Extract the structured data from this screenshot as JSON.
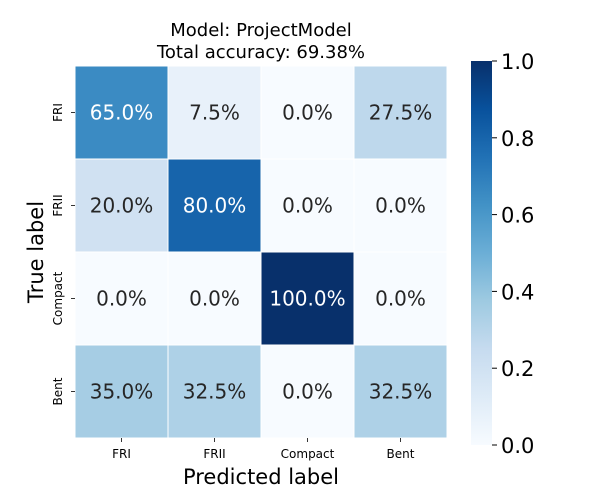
{
  "chart_data": {
    "type": "heatmap",
    "title_lines": [
      "Model: ProjectModel",
      "Total accuracy: 69.38%"
    ],
    "xlabel": "Predicted label",
    "ylabel": "True label",
    "x_categories": [
      "FRI",
      "FRII",
      "Compact",
      "Bent"
    ],
    "y_categories": [
      "FRI",
      "FRII",
      "Compact",
      "Bent"
    ],
    "values": [
      [
        0.65,
        0.075,
        0.0,
        0.275
      ],
      [
        0.2,
        0.8,
        0.0,
        0.0
      ],
      [
        0.0,
        0.0,
        1.0,
        0.0
      ],
      [
        0.35,
        0.325,
        0.0,
        0.325
      ]
    ],
    "cell_labels": [
      [
        "65.0%",
        "7.5%",
        "0.0%",
        "27.5%"
      ],
      [
        "20.0%",
        "80.0%",
        "0.0%",
        "0.0%"
      ],
      [
        "0.0%",
        "0.0%",
        "100.0%",
        "0.0%"
      ],
      [
        "35.0%",
        "32.5%",
        "0.0%",
        "32.5%"
      ]
    ],
    "colormap": "Blues",
    "vmin": 0.0,
    "vmax": 1.0,
    "colorbar_ticks": [
      "0.0",
      "0.2",
      "0.4",
      "0.6",
      "0.8",
      "1.0"
    ],
    "colors": {
      "low": "#f7fbff",
      "high": "#08306b",
      "text_dark": "#262626",
      "text_light": "#ffffff",
      "cell_border": "#ffffff"
    }
  }
}
